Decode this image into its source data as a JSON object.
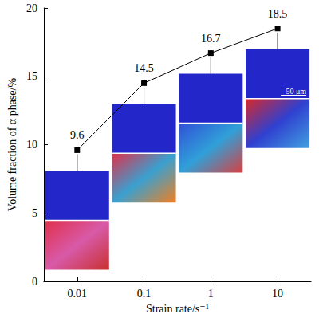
{
  "chart_data": {
    "type": "line",
    "x_label": "Strain rate/s⁻¹",
    "y_label": "Volume fraction of α phase/%",
    "categories": [
      "0.01",
      "0.1",
      "1",
      "10"
    ],
    "values": [
      9.6,
      14.5,
      16.7,
      18.5
    ],
    "color": "#000000",
    "marker": "square",
    "ylim": [
      0,
      20
    ],
    "yticks": [
      0,
      5,
      10,
      15,
      20
    ],
    "data_labels": true,
    "grid": false,
    "annotations": [
      "50 μm"
    ]
  }
}
